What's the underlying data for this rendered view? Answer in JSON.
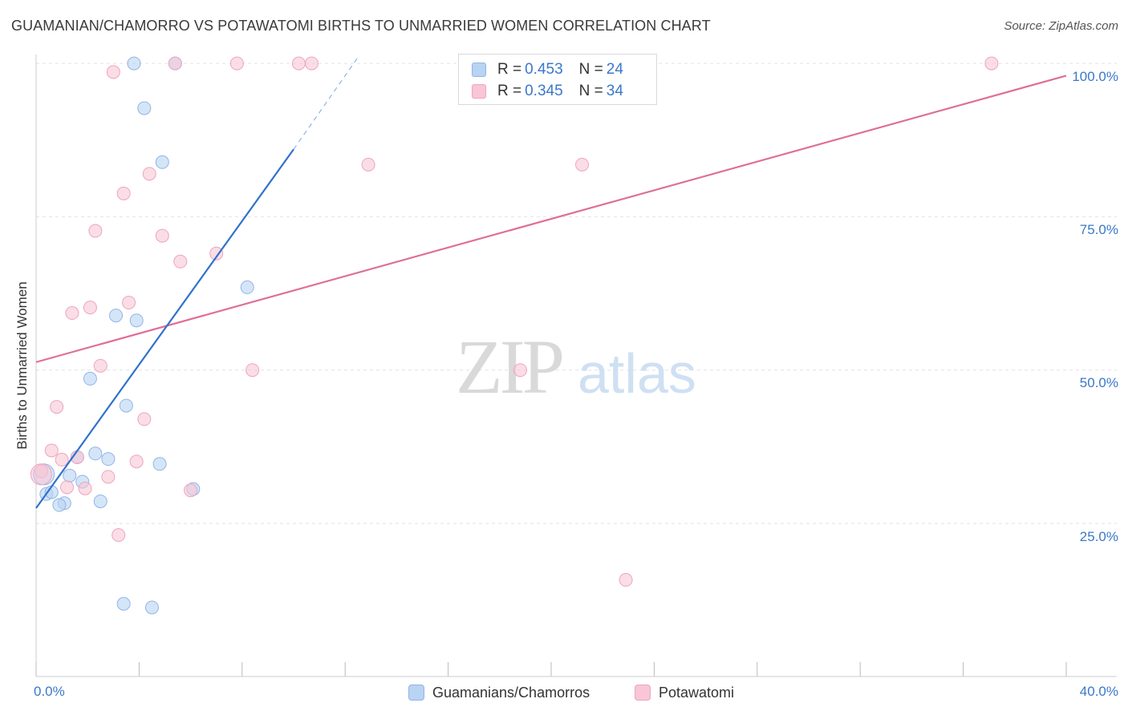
{
  "title": "GUAMANIAN/CHAMORRO VS POTAWATOMI BIRTHS TO UNMARRIED WOMEN CORRELATION CHART",
  "source": "Source: ZipAtlas.com",
  "watermark": {
    "zip": "ZIP",
    "atlas": "atlas"
  },
  "legend": {
    "r_label": "R =",
    "n_label": "N =",
    "series": [
      {
        "r": "0.453",
        "n": "24"
      },
      {
        "r": "0.345",
        "n": "34"
      }
    ]
  },
  "colors": {
    "blue_fill": "#b9d3f3",
    "blue_stroke": "#8fb5e6",
    "blue_line": "#2f72cc",
    "pink_fill": "#f8c6d6",
    "pink_stroke": "#eea4bd",
    "pink_line": "#e06f97",
    "tick_text": "#3a78c8",
    "grid": "#e2e2e2"
  },
  "chart_data": {
    "type": "scatter",
    "title": "GUAMANIAN/CHAMORRO VS POTAWATOMI BIRTHS TO UNMARRIED WOMEN CORRELATION CHART",
    "xlabel": "",
    "ylabel": "Births to Unmarried Women",
    "xlim": [
      0,
      40
    ],
    "ylim": [
      0,
      101
    ],
    "x_ticks": [
      0,
      4,
      8,
      12,
      16,
      20,
      24,
      28,
      32,
      36,
      40
    ],
    "x_tick_labels": {
      "min": "0.0%",
      "max": "40.0%"
    },
    "y_ticks": [
      25,
      50,
      75,
      100
    ],
    "y_tick_labels": [
      "25.0%",
      "50.0%",
      "75.0%",
      "100.0%"
    ],
    "series": [
      {
        "name": "Guamanians/Chamorros",
        "r": 0.453,
        "n": 24,
        "points": [
          {
            "x": 3.8,
            "y": 100.0
          },
          {
            "x": 5.4,
            "y": 100.0
          },
          {
            "x": 4.2,
            "y": 92.7
          },
          {
            "x": 4.9,
            "y": 83.9
          },
          {
            "x": 8.2,
            "y": 63.5
          },
          {
            "x": 3.1,
            "y": 58.9
          },
          {
            "x": 3.9,
            "y": 58.1
          },
          {
            "x": 2.1,
            "y": 48.6
          },
          {
            "x": 3.5,
            "y": 44.2
          },
          {
            "x": 2.3,
            "y": 36.4
          },
          {
            "x": 1.6,
            "y": 35.8
          },
          {
            "x": 2.8,
            "y": 35.5
          },
          {
            "x": 4.8,
            "y": 34.7
          },
          {
            "x": 0.3,
            "y": 33.0
          },
          {
            "x": 1.3,
            "y": 32.8
          },
          {
            "x": 1.8,
            "y": 31.8
          },
          {
            "x": 6.1,
            "y": 30.6
          },
          {
            "x": 0.4,
            "y": 29.8
          },
          {
            "x": 0.6,
            "y": 30.1
          },
          {
            "x": 1.1,
            "y": 28.3
          },
          {
            "x": 0.9,
            "y": 28.0
          },
          {
            "x": 2.5,
            "y": 28.6
          },
          {
            "x": 3.4,
            "y": 11.9
          },
          {
            "x": 4.5,
            "y": 11.3
          }
        ],
        "trend": {
          "x0": 0.0,
          "y0": 27.5,
          "x1": 10.0,
          "y1": 86.0,
          "dash_to_x": 12.5,
          "dash_to_y": 101.0
        }
      },
      {
        "name": "Potawatomi",
        "r": 0.345,
        "n": 34,
        "points": [
          {
            "x": 5.4,
            "y": 100.0
          },
          {
            "x": 7.8,
            "y": 100.0
          },
          {
            "x": 10.2,
            "y": 100.0
          },
          {
            "x": 10.7,
            "y": 100.0
          },
          {
            "x": 37.1,
            "y": 100.0
          },
          {
            "x": 3.0,
            "y": 98.6
          },
          {
            "x": 12.9,
            "y": 83.5
          },
          {
            "x": 21.2,
            "y": 83.5
          },
          {
            "x": 4.4,
            "y": 82.0
          },
          {
            "x": 3.4,
            "y": 78.8
          },
          {
            "x": 2.3,
            "y": 72.7
          },
          {
            "x": 4.9,
            "y": 71.9
          },
          {
            "x": 7.0,
            "y": 69.0
          },
          {
            "x": 5.6,
            "y": 67.7
          },
          {
            "x": 3.6,
            "y": 61.0
          },
          {
            "x": 2.1,
            "y": 60.2
          },
          {
            "x": 1.4,
            "y": 59.3
          },
          {
            "x": 2.5,
            "y": 50.7
          },
          {
            "x": 8.4,
            "y": 50.0
          },
          {
            "x": 18.8,
            "y": 50.0
          },
          {
            "x": 0.8,
            "y": 44.0
          },
          {
            "x": 4.2,
            "y": 42.0
          },
          {
            "x": 0.6,
            "y": 36.9
          },
          {
            "x": 1.6,
            "y": 35.8
          },
          {
            "x": 1.0,
            "y": 35.4
          },
          {
            "x": 3.9,
            "y": 35.1
          },
          {
            "x": 0.2,
            "y": 33.5
          },
          {
            "x": 2.8,
            "y": 32.6
          },
          {
            "x": 1.2,
            "y": 30.9
          },
          {
            "x": 1.9,
            "y": 30.7
          },
          {
            "x": 6.0,
            "y": 30.4
          },
          {
            "x": 3.2,
            "y": 23.1
          },
          {
            "x": 22.9,
            "y": 15.8
          },
          {
            "x": 0.2,
            "y": 33.0
          }
        ],
        "trend": {
          "x0": 0.0,
          "y0": 51.3,
          "x1": 40.0,
          "y1": 98.0
        }
      }
    ]
  }
}
